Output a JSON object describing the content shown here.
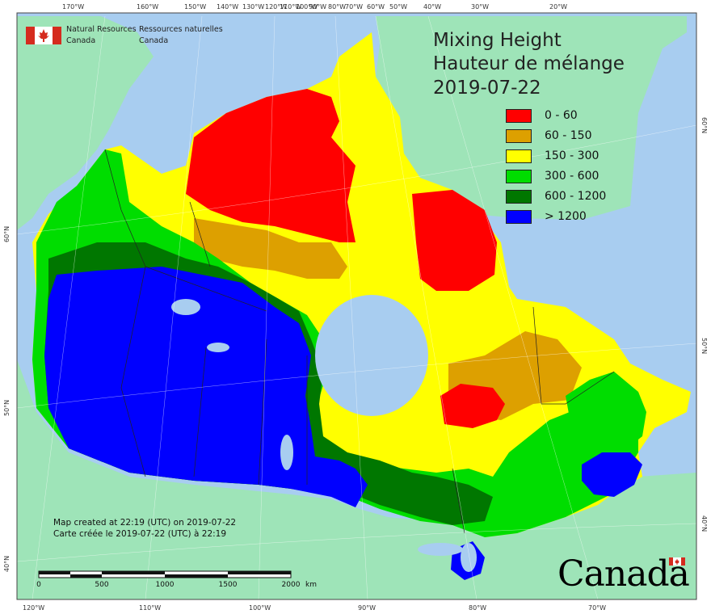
{
  "map": {
    "title_en": "Mixing Height",
    "title_fr": "Hauteur de mélange",
    "date": "2019-07-22",
    "agency_en_line1": "Natural Resources",
    "agency_en_line2": "Canada",
    "agency_fr_line1": "Ressources naturelles",
    "agency_fr_line2": "Canada",
    "created_en": "Map created at 22:19 (UTC) on 2019-07-22",
    "created_fr": "Carte créée le 2019-07-22 (UTC) à 22:19",
    "wordmark": "Canada",
    "flag_icon": "canada-flag-icon"
  },
  "legend": [
    {
      "label": "0 - 60",
      "color": "#ff0000"
    },
    {
      "label": "60 - 150",
      "color": "#dda000"
    },
    {
      "label": "150 - 300",
      "color": "#ffff00"
    },
    {
      "label": "300 - 600",
      "color": "#00dd00"
    },
    {
      "label": "600 - 1200",
      "color": "#007700"
    },
    {
      "label": "> 1200",
      "color": "#0000ff"
    }
  ],
  "colors": {
    "ocean": "#a8cdf0",
    "foreign_land": "#9ee4b8",
    "lakes": "#a8cdf0"
  },
  "graticule": {
    "top": [
      "170°W",
      "160°W",
      "150°W",
      "140°W",
      "130°W",
      "120°W",
      "110°W",
      "100°W",
      "90°W",
      "80°W",
      "70°W",
      "60°W",
      "50°W",
      "40°W",
      "30°W",
      "20°W"
    ],
    "bottom": [
      "120°W",
      "110°W",
      "100°W",
      "90°W",
      "80°W",
      "70°W"
    ],
    "left": [
      "60°N",
      "50°N",
      "40°N"
    ],
    "right": [
      "60°N",
      "50°N",
      "40°N"
    ]
  },
  "scalebar": {
    "ticks": [
      "0",
      "500",
      "1000",
      "1500",
      "2000"
    ],
    "unit": "km"
  }
}
